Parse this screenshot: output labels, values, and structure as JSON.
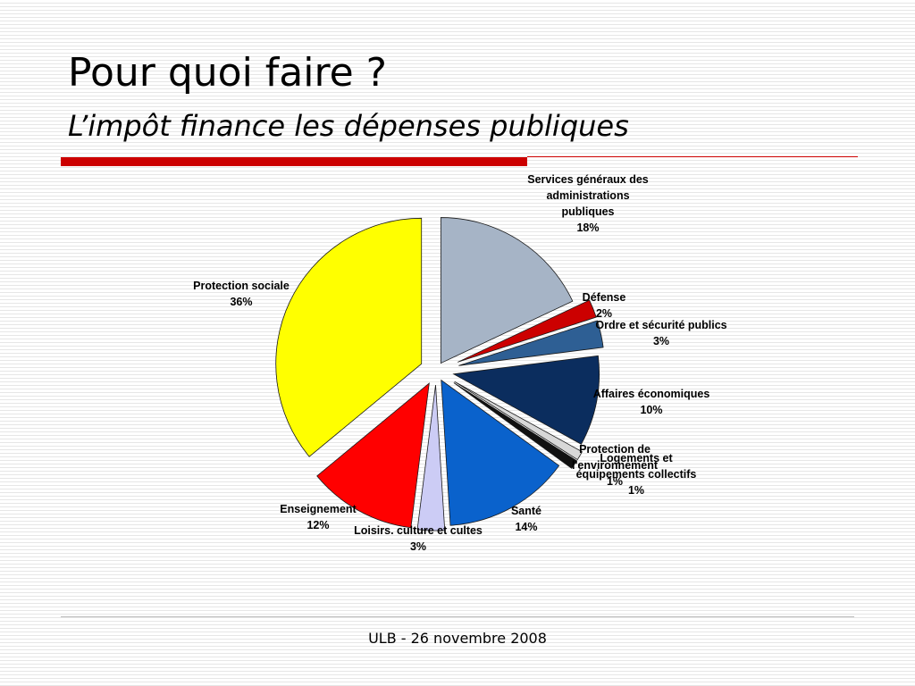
{
  "slide": {
    "title": "Pour quoi faire ?",
    "subtitle": "L’impôt finance les dépenses publiques",
    "footer": "ULB - 26 novembre 2008",
    "accent_color": "#cc0000",
    "rule_color": "#cc0000"
  },
  "chart_data": {
    "type": "pie",
    "title": "",
    "slices": [
      {
        "label": "Services généraux des administrations publiques",
        "lines": [
          "Services généraux des",
          "administrations",
          "publiques",
          "18%"
        ],
        "value": 18,
        "percent": "18%",
        "color": "#a6b4c6"
      },
      {
        "label": "Défense",
        "lines": [
          "Défense",
          "2%"
        ],
        "value": 2,
        "percent": "2%",
        "color": "#cc0000"
      },
      {
        "label": "Ordre et sécurité publics",
        "lines": [
          "Ordre et sécurité publics",
          "3%"
        ],
        "value": 3,
        "percent": "3%",
        "color": "#2e5f94"
      },
      {
        "label": "Affaires économiques",
        "lines": [
          "Affaires économiques",
          "10%"
        ],
        "value": 10,
        "percent": "10%",
        "color": "#0b2d5e"
      },
      {
        "label": "Protection de l'environnement",
        "lines": [
          "Protection de",
          "l'environnement",
          "1%"
        ],
        "value": 1,
        "percent": "1%",
        "color": "#d8d8d8"
      },
      {
        "label": "Logements et équipements collectifs",
        "lines": [
          "Logements et",
          "équipements collectifs",
          "1%"
        ],
        "value": 1,
        "percent": "1%",
        "color": "#111111"
      },
      {
        "label": "Santé",
        "lines": [
          "Santé",
          "14%"
        ],
        "value": 14,
        "percent": "14%",
        "color": "#0a62cc"
      },
      {
        "label": "Loisirs. culture et cultes",
        "lines": [
          "Loisirs. culture et cultes",
          "3%"
        ],
        "value": 3,
        "percent": "3%",
        "color": "#ccccf5"
      },
      {
        "label": "Enseignement",
        "lines": [
          "Enseignement",
          "12%"
        ],
        "value": 12,
        "percent": "12%",
        "color": "#ff0000"
      },
      {
        "label": "Protection sociale",
        "lines": [
          "Protection sociale",
          "36%"
        ],
        "value": 36,
        "percent": "36%",
        "color": "#ffff00"
      }
    ],
    "legend": "none",
    "exploded": true
  }
}
